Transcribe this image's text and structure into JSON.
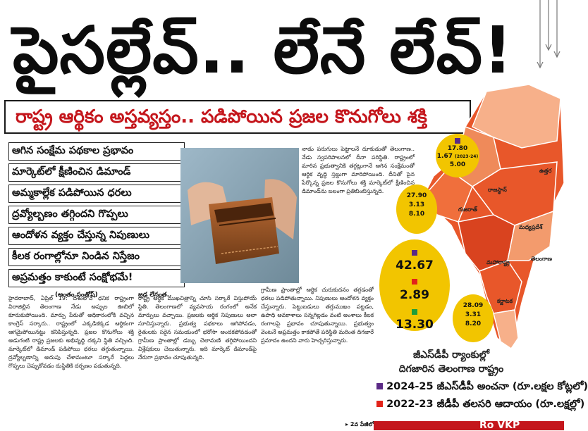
{
  "headline": "పైసల్లేవ్.. లేనే లేవ్!",
  "subheadline": "రాష్ట్ర ఆర్థికం అస్తవ్యస్తం.. పడిపోయిన ప్రజల కొనుగోలు శక్తి",
  "key_points": [
    "ఆగిన సంక్షేమ పథకాల ప్రభావం",
    "మార్కెట్‌లో క్షీణించిన డిమాండ్",
    "అమ్మకాల్లేక పడిపోయిన ధరలు",
    "ద్రవ్యోల్బణం తగ్గిందని గొప్పలు",
    "ఆందోళన వ్యక్తం చేస్తున్న నిపుణులు",
    "కీలక రంగాల్లోనూ నిండిన నిస్తేజం",
    "అప్రమత్తం కాకుంటే సంక్షోభమే!"
  ],
  "byline": "(అంతం సంతోష్)",
  "column1_text": "హైదరాబాద్, ఏప్రిల్ 19: దేశంలోనే ధనిక రాష్ట్రంగా విరాజిల్లిన తెలంగాణ నేడు అప్పుల ఊబిలో కూరుకుపోయింది. మార్పు పేరుతో అధికారంలోకి వచ్చిన కాంగ్రెస్ సర్కారు.. రాష్ట్రంలో ఎక్కడికక్కడ ఆర్థికంగా ఆగమైపోయినట్టు కనిపిస్తున్నది. ప్రజల కొనుగోలు శక్తి అడుగంటి రాష్ట్ర ప్రజలకు అభివృద్ధి దక్కని స్థితి వచ్చింది. మార్కెట్‌లో డిమాండ్ పడిపోయి ధరలు తగ్గుతున్నాయి. ద్రవ్యోల్బణాన్ని అదుపు చేశామంటూ సర్కారే పెద్దలు గొప్పలు చెప్పుకోవడం దుస్థితికి దర్పణం పడుతున్నది.",
  "column2_heading": "జడ లేనంత..",
  "column2_text": "రాష్ట్ర అర్థిక ముఖచిత్రాన్ని చూసి సర్కారే విస్తుపోయే స్థితి. తెలంగాణలో వ్యవసాయ రంగంలో అనేక మార్పులు వచ్చాయి. ప్రజలకు ఆర్థిక నిపుణులు అలా సూచిస్తున్నారు. ప్రభుత్వ పథకాలు ఆగిపోవడం, రైతులకు సరైన సమయంలో భరోసా అందకపోవడంతో గ్రామీణ ప్రాంతాల్లో డబ్బు చెలామణి తగ్గిపోయిందని విశ్లేషకులు చెబుతున్నారు. ఇది మార్కెట్ డిమాండ్‌పై నేరుగా ప్రభావం చూపుతున్నది.",
  "column3_text": "నాడు పరుగులు పెట్టాలనే దూకుడుతో తెలంగాణ.. నేడు స్వపరిపాలనలో దీనా పరిస్థితి. రాష్ట్రంలో మారిన ప్రభుత్వానికి తగ్గట్లుగానే ఆగిన సంక్షేమంతో ఆర్థిక వృద్ధి స్తబ్దుగా మారిపోయింది. దీనితో పైన పేర్కొన్న ప్రజల కొనుగోలు శక్తి మార్కెట్‌లో క్షీణించిన డిమాండ్‌ను బలంగా ప్రతిబింబిస్తున్నది.",
  "column3_rest": "గ్రామీణ ప్రాంతాల్లో ఆర్థిక చురుకుదనం తగ్గడంతో ధరలు పడిపోతున్నాయి. నిపుణులు ఆందోళన వ్యక్తం చేస్తున్నారు. పెట్టుబడులు తగ్గుముఖం పట్టడం, ఉపాధి అవకాశాలు సన్నగిల్లడం వంటి అంశాలు కీలక రంగాలపై ప్రభావం చూపుతున్నాయి. ప్రభుత్వం వెంటనే అప్రమత్తం కాకపోతే పరిస్థితి మరింత దిగజారే ప్రమాదం ఉందని వారు హెచ్చరిస్తున్నారు.",
  "continued": "2వ పేజీలో",
  "map_caption": [
    "జీఎస్‌డీపీ ర్యాంకుల్లో",
    "దిగజారిన తెలంగాణ రాష్ట్రం"
  ],
  "map_states": [
    "రాజస్థాన్",
    "మధ్యప్రదేశ్",
    "గుజరాత్",
    "మహారాష్ట్ర",
    "తెలంగాణ",
    "కర్ణాటక",
    "ఉత్తర"
  ],
  "stats": [
    {
      "values": [
        "17.80",
        "1.67",
        "5.00"
      ],
      "note": "(2023-24)"
    },
    {
      "values": [
        "27.90",
        "3.13",
        "8.10"
      ]
    },
    {
      "values": [
        "42.67",
        "2.89",
        "13.30"
      ]
    },
    {
      "values": [
        "28.09",
        "3.31",
        "8.20"
      ]
    }
  ],
  "legend": [
    {
      "label": "2024-25 జీఎస్‌డీపీ అంచనా (రూ.లక్షల కోట్లలో)",
      "color": "#5b2a86"
    },
    {
      "label": "2022-23 జీడీపీ తలసరి ఆదాయం (రూ.లక్షల్లో)",
      "color": "#e2231a"
    },
    {
      "label": "",
      "color": "#1f9d3a"
    }
  ],
  "bottom_banner": "Ro VKP",
  "colors": {
    "accent_red": "#c4161c",
    "circle_yellow": "#f2c500",
    "map_orange": "#e8572a",
    "map_light": "#f7b08a"
  }
}
